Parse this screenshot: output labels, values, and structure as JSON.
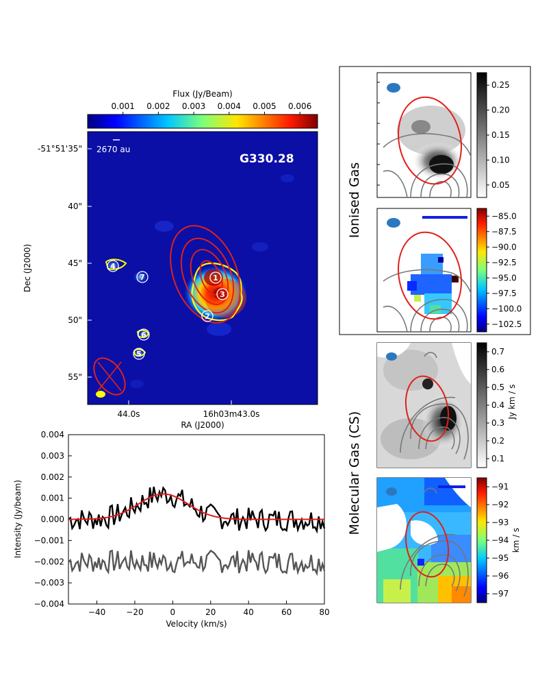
{
  "main_map": {
    "colorbar_label": "Flux (Jy/Beam)",
    "colorbar_ticks": [
      "0.001",
      "0.002",
      "0.003",
      "0.004",
      "0.005",
      "0.006"
    ],
    "colorbar_values": [
      0.001,
      0.002,
      0.003,
      0.004,
      0.005,
      0.006
    ],
    "colorbar_range": [
      0.0,
      0.0065
    ],
    "source_name": "G330.28",
    "scale_bar_label": "2670 au",
    "dec_ticks": [
      "-51°51'35\"",
      "40\"",
      "45\"",
      "50\"",
      "55\""
    ],
    "ra_ticks": [
      "44.0s",
      "16h03m43.0s"
    ],
    "xlabel": "RA (J2000)",
    "ylabel": "Dec (J2000)",
    "core_labels": [
      "1",
      "2",
      "3",
      "4",
      "5",
      "6",
      "7"
    ]
  },
  "chart_data": [
    {
      "type": "line",
      "title": "",
      "xlabel": "Velocity (km/s)",
      "ylabel": "Intensity (Jy/beam)",
      "xlim": [
        -55,
        80
      ],
      "ylim": [
        -0.004,
        0.004
      ],
      "xticks": [
        -40,
        -20,
        0,
        20,
        40,
        60,
        80
      ],
      "xtick_labels": [
        "−40",
        "−20",
        "0",
        "20",
        "40",
        "60",
        "80"
      ],
      "yticks": [
        -0.004,
        -0.003,
        -0.002,
        -0.001,
        0.0,
        0.001,
        0.002,
        0.003,
        0.004
      ],
      "ytick_labels": [
        "−0.004",
        "−0.003",
        "−0.002",
        "−0.001",
        "0.000",
        "0.001",
        "0.002",
        "0.003",
        "0.004"
      ],
      "series": [
        {
          "name": "spectrum",
          "color": "#000000"
        },
        {
          "name": "gaussian-fit",
          "color": "#e41a1c",
          "amplitude": 0.0012,
          "center": -5,
          "sigma": 13
        },
        {
          "name": "residual",
          "color": "#555555",
          "offset": -0.002
        }
      ]
    }
  ],
  "panels": {
    "ionised_label": "Ionised Gas",
    "molecular_label": "Molecular Gas (CS)",
    "intensity_ticks": [
      "0.25",
      "0.20",
      "0.15",
      "0.10",
      "0.05"
    ],
    "ionised_velocity_ticks": [
      "−85.0",
      "−87.5",
      "−90.0",
      "−92.5",
      "−95.0",
      "−97.5",
      "−100.0",
      "−102.5"
    ],
    "cs_intensity_ticks": [
      "0.7",
      "0.6",
      "0.5",
      "0.4",
      "0.3",
      "0.2",
      "0.1"
    ],
    "cs_intensity_label": "Jy km / s",
    "cs_velocity_ticks": [
      "−91",
      "−92",
      "−93",
      "−94",
      "−95",
      "−96",
      "−97"
    ],
    "cs_velocity_label": "km / s"
  }
}
